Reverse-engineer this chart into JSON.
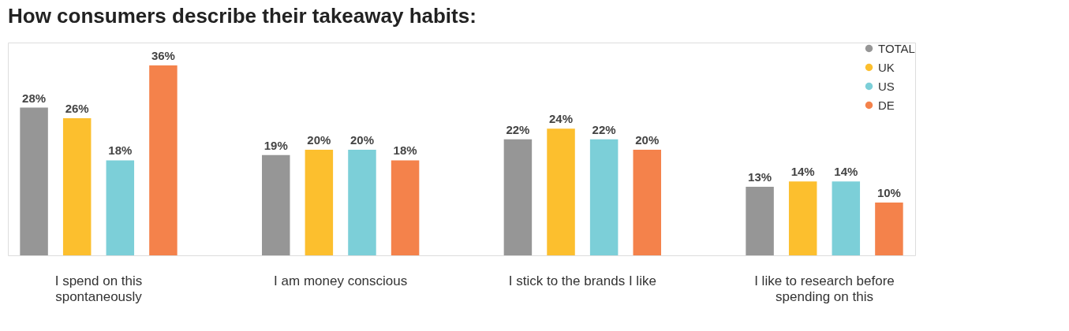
{
  "chart_data": {
    "type": "bar",
    "title": "How consumers describe their takeaway habits:",
    "categories": [
      "I spend on this spontaneously",
      "I am money conscious",
      "I stick to the brands I like",
      "I like to research before spending on this"
    ],
    "series": [
      {
        "name": "TOTAL",
        "color": "#969696",
        "values": [
          28,
          19,
          22,
          13
        ],
        "value_labels": [
          "28%",
          "19%",
          "22%",
          "13%"
        ]
      },
      {
        "name": "UK",
        "color": "#fcbf2e",
        "values": [
          26,
          20,
          24,
          14
        ],
        "value_labels": [
          "26%",
          "20%",
          "24%",
          "14%"
        ]
      },
      {
        "name": "US",
        "color": "#7ccfd8",
        "values": [
          18,
          20,
          22,
          14
        ],
        "value_labels": [
          "18%",
          "20%",
          "22%",
          "14%"
        ]
      },
      {
        "name": "DE",
        "color": "#f4824b",
        "values": [
          36,
          18,
          20,
          10
        ],
        "value_labels": [
          "36%",
          "18%",
          "20%",
          "10%"
        ]
      }
    ],
    "legend": "top right"
  }
}
